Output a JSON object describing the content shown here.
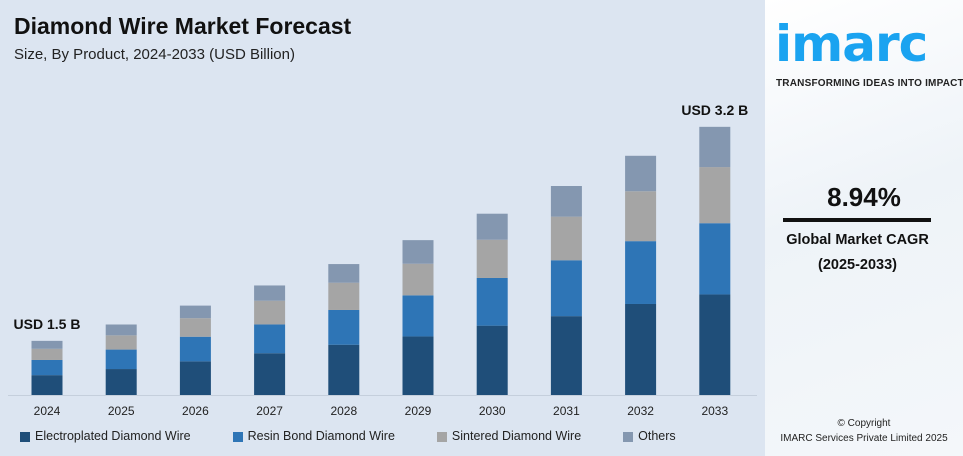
{
  "title": "Diamond Wire Market Forecast",
  "subtitle": "Size, By Product, 2024-2033 (USD Billion)",
  "chart_data": {
    "type": "bar",
    "stacked": true,
    "categories": [
      "2024",
      "2025",
      "2026",
      "2027",
      "2028",
      "2029",
      "2030",
      "2031",
      "2032",
      "2033"
    ],
    "series": [
      {
        "name": "Electroplated Diamond Wire",
        "color": "#1f4e79",
        "values": [
          0.55,
          0.6,
          0.67,
          0.74,
          0.81,
          0.87,
          0.96,
          1.03,
          1.13,
          1.2
        ]
      },
      {
        "name": "Resin Bond Diamond Wire",
        "color": "#2e75b6",
        "values": [
          0.42,
          0.45,
          0.49,
          0.51,
          0.56,
          0.61,
          0.66,
          0.73,
          0.78,
          0.85
        ]
      },
      {
        "name": "Sintered Diamond Wire",
        "color": "#a5a5a5",
        "values": [
          0.31,
          0.33,
          0.37,
          0.42,
          0.44,
          0.47,
          0.53,
          0.57,
          0.62,
          0.67
        ]
      },
      {
        "name": "Others",
        "color": "#8497b0",
        "values": [
          0.22,
          0.25,
          0.25,
          0.27,
          0.3,
          0.35,
          0.36,
          0.4,
          0.44,
          0.48
        ]
      }
    ],
    "annotations": [
      {
        "category": "2024",
        "text": "USD 1.5 B"
      },
      {
        "category": "2033",
        "text": "USD 3.2 B"
      }
    ],
    "grid": false,
    "legend": "bottom"
  },
  "side": {
    "logo": "imarc",
    "tagline": "TRANSFORMING IDEAS INTO IMPACT",
    "cagr_value": "8.94%",
    "cagr_label": "Global Market CAGR",
    "cagr_period": "(2025-2033)",
    "copyright": "© Copyright",
    "company": "IMARC Services Private Limited 2025",
    "brand_color": "#1aa3f0"
  }
}
